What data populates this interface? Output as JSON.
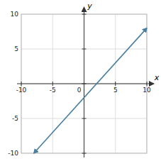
{
  "chart_data": {
    "type": "line",
    "x": [
      -8,
      10
    ],
    "values": [
      -10,
      8
    ],
    "color": "#4a7fa0",
    "xlabel": "x",
    "ylabel": "y",
    "xlim": [
      -10,
      10
    ],
    "ylim": [
      -10,
      10
    ],
    "xticks": [
      -10,
      -5,
      0,
      5,
      10
    ],
    "yticks": [
      -10,
      -5,
      0,
      5,
      10
    ],
    "grid": true
  }
}
